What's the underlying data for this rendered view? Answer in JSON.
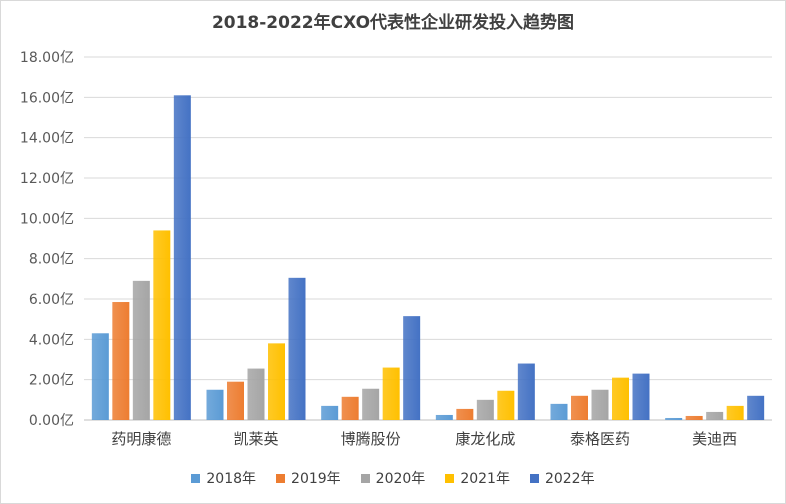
{
  "chart_data": {
    "type": "bar",
    "title": "2018-2022年CXO代表性企业研发投入趋势图",
    "categories": [
      "药明康德",
      "凯莱英",
      "博腾股份",
      "康龙化成",
      "泰格医药",
      "美迪西"
    ],
    "series": [
      {
        "name": "2018年",
        "color": "#5b9bd5",
        "values": [
          4.3,
          1.5,
          0.7,
          0.25,
          0.8,
          0.1
        ]
      },
      {
        "name": "2019年",
        "color": "#ed7d31",
        "values": [
          5.85,
          1.9,
          1.15,
          0.55,
          1.2,
          0.2
        ]
      },
      {
        "name": "2020年",
        "color": "#a5a5a5",
        "values": [
          6.9,
          2.55,
          1.55,
          1.0,
          1.5,
          0.4
        ]
      },
      {
        "name": "2021年",
        "color": "#ffc000",
        "values": [
          9.4,
          3.8,
          2.6,
          1.45,
          2.1,
          0.7
        ]
      },
      {
        "name": "2022年",
        "color": "#4472c4",
        "values": [
          16.1,
          7.05,
          5.15,
          2.8,
          2.3,
          1.2
        ]
      }
    ],
    "yticks": [
      "0.00亿",
      "2.00亿",
      "4.00亿",
      "6.00亿",
      "8.00亿",
      "10.00亿",
      "12.00亿",
      "14.00亿",
      "16.00亿",
      "18.00亿"
    ],
    "ylim": [
      0,
      18
    ],
    "legend": "bottom",
    "grid": true
  }
}
